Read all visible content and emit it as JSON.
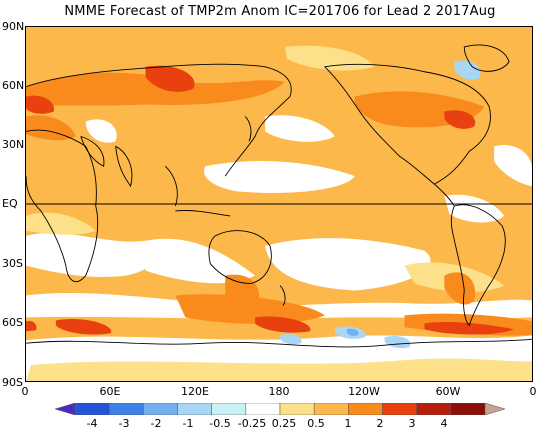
{
  "title": "NMME Forecast of TMP2m Anom IC=201706 for Lead 2 2017Aug",
  "lat_labels": [
    "90N",
    "60N",
    "30N",
    "EQ",
    "30S",
    "60S",
    "90S"
  ],
  "lon_labels": [
    "0",
    "60E",
    "120E",
    "180",
    "120W",
    "60W",
    "0"
  ],
  "colorbar": {
    "levels": [
      "-4",
      "-3",
      "-2",
      "-1",
      "-0.5",
      "-0.25",
      "0.25",
      "0.5",
      "1",
      "2",
      "3",
      "4"
    ],
    "colors": [
      "#4b2bbf",
      "#2155d6",
      "#3f7fe6",
      "#74b0f0",
      "#a8d6f5",
      "#c8f0f5",
      "#ffffff",
      "#fde08a",
      "#fcb84a",
      "#f98b1c",
      "#e8400e",
      "#b51e0c",
      "#8a0f0a",
      "#c9a294"
    ]
  },
  "map": {
    "background_anomaly_color": "#fcb84a",
    "neutral_color": "#ffffff",
    "warm_light_color": "#fde08a",
    "warm_strong_color": "#f98b1c",
    "hot_color": "#e8400e",
    "cool_color": "#a8d6f5",
    "cold_color": "#74b0f0"
  }
}
